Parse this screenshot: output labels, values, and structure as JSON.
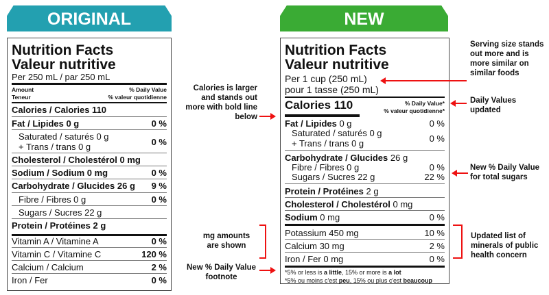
{
  "original": {
    "banner": "ORIGINAL",
    "color": "#23a0b0",
    "title1": "Nutrition Facts",
    "title2": "Valeur nutritive",
    "serving": "Per 250 mL  / par 250 mL",
    "amount": "Amount",
    "teneur": "Teneur",
    "dv": "% Daily Value",
    "vq": "% valeur quotidienne",
    "rows": [
      {
        "label": "Calories / Calories 110",
        "value": ""
      },
      {
        "label": "Fat / Lipides 0 g",
        "value": "0 %"
      },
      {
        "label": "Saturated / saturés 0 g",
        "label2": "+ Trans / trans 0 g",
        "value": "0 %"
      },
      {
        "label": "Cholesterol / Cholestérol 0 mg",
        "value": ""
      },
      {
        "label": "Sodium / Sodium 0 mg",
        "value": "0 %"
      },
      {
        "label": "Carbohydrate / Glucides 26 g",
        "value": "9 %"
      },
      {
        "label": "Fibre / Fibres 0 g",
        "value": "0 %"
      },
      {
        "label": "Sugars / Sucres 22 g",
        "value": ""
      },
      {
        "label": "Protein / Protéines 2 g",
        "value": ""
      },
      {
        "label": "Vitamin A / Vitamine A",
        "value": "0 %"
      },
      {
        "label": "Vitamin C / Vitamine C",
        "value": "120 %"
      },
      {
        "label": "Calcium / Calcium",
        "value": "2 %"
      },
      {
        "label": "Iron / Fer",
        "value": "0 %"
      }
    ]
  },
  "new": {
    "banner": "NEW",
    "color": "#3aab34",
    "title1": "Nutrition Facts",
    "title2": "Valeur nutritive",
    "serving1": "Per 1 cup (250 mL)",
    "serving2": "pour 1 tasse (250 mL)",
    "calories": "Calories 110",
    "dv": "% Daily Value*",
    "vq": "% valeur quotidienne*",
    "fat": {
      "b": "Fat / Lipides",
      "v": " 0 g",
      "p": "0 %"
    },
    "sat": "Saturated / saturés 0 g",
    "trans": "+ Trans / trans 0 g",
    "satp": "0 %",
    "carb": {
      "b": "Carbohydrate / Glucides",
      "v": " 26 g"
    },
    "fibre": "Fibre / Fibres 0 g",
    "fibrep": "0 %",
    "sugars": "Sugars / Sucres 22 g",
    "sugarsp": "22 %",
    "protein": {
      "b": "Protein / Protéines",
      "v": " 2 g"
    },
    "chol": {
      "b": "Cholesterol / Cholestérol",
      "v": " 0 mg"
    },
    "sodium": {
      "b": "Sodium",
      "v": " 0 mg",
      "p": "0 %"
    },
    "potassium": "Potassium 450 mg",
    "potassiump": "10 %",
    "calcium": "Calcium 30 mg",
    "calciump": "2 %",
    "iron": "Iron / Fer 0 mg",
    "ironp": "0 %",
    "fn1": {
      "a": "*5% or less is ",
      "b": "a little",
      "c": ", 15% or more is ",
      "d": "a lot"
    },
    "fn2": {
      "a": "*5% ou moins c'est ",
      "b": "peu",
      "c": ", 15% ou plus c'est ",
      "d": "beaucoup"
    }
  },
  "annotations": {
    "serving": "Serving size stands out more and is more similar on similar foods",
    "calories": "Calories is larger and stands out more with bold line below",
    "dv": "Daily Values updated",
    "sugars": "New % Daily Value for total sugars",
    "mg": "mg amounts are shown",
    "minerals": "Updated list of minerals of public health concern",
    "footnote": "New % Daily Value footnote",
    "accent": "#e11111"
  }
}
